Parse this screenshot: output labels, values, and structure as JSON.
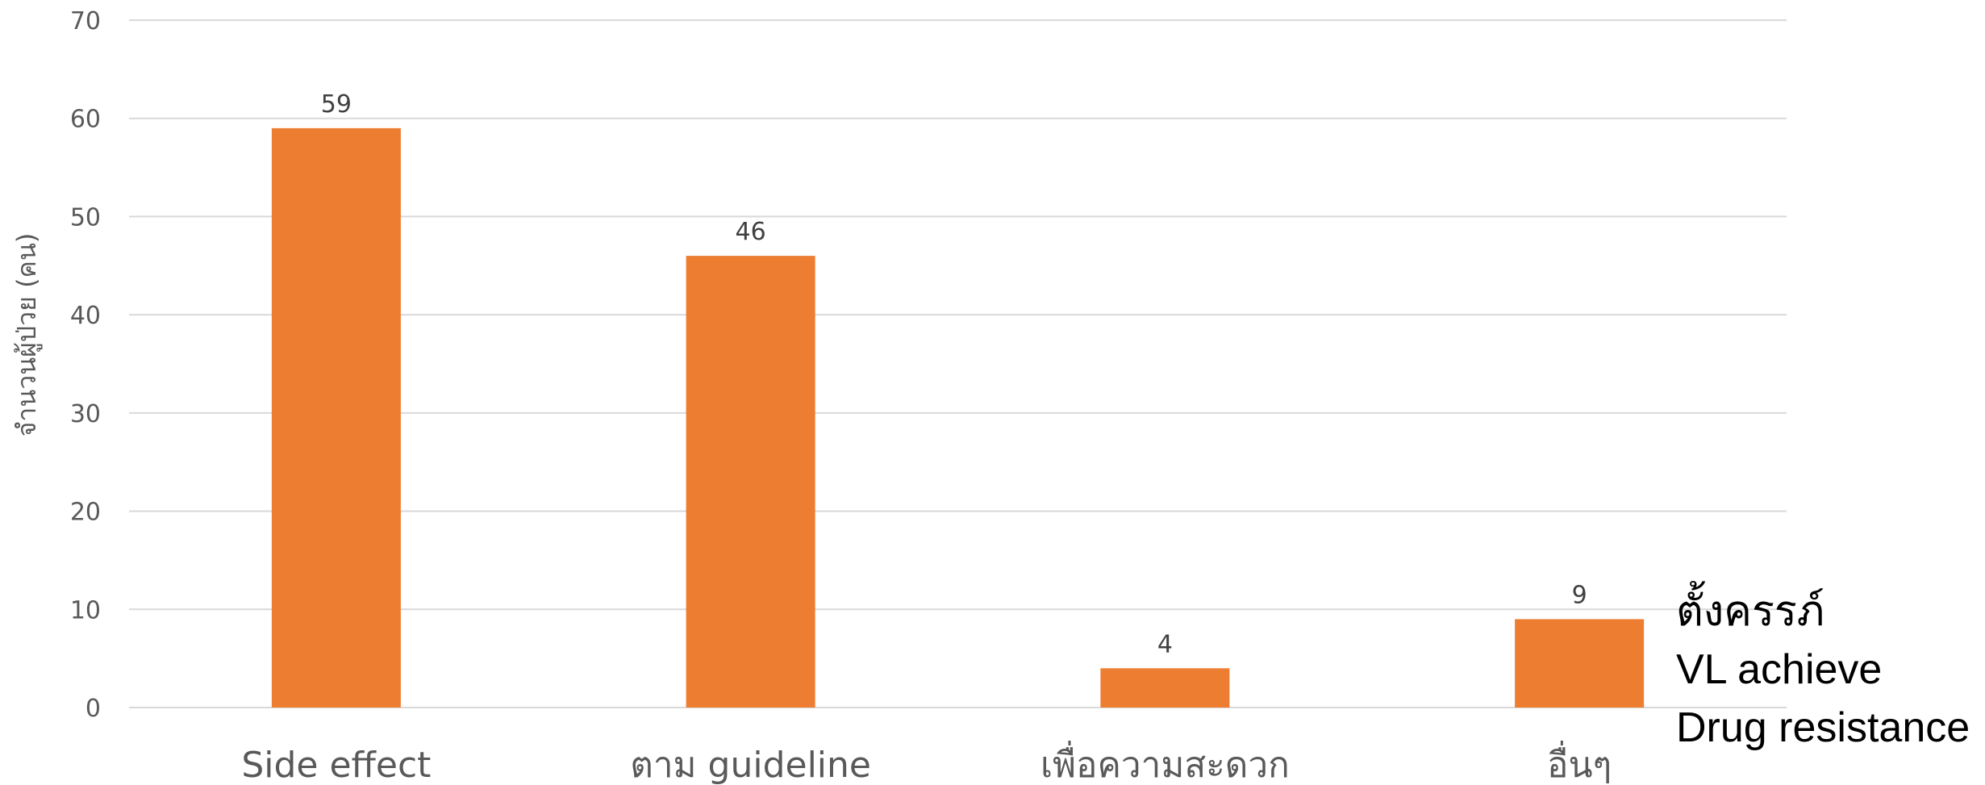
{
  "chart_data": {
    "type": "bar",
    "categories": [
      "Side effect",
      "ตาม guideline",
      "เพื่อความสะดวก",
      "อื่นๆ"
    ],
    "values": [
      59,
      46,
      4,
      9
    ],
    "data_labels": [
      "59",
      "46",
      "4",
      "9"
    ],
    "ylabel": "จำนวนผู้ป่วย (คน)",
    "xlabel": "",
    "ylim": [
      0,
      70
    ],
    "yticks": [
      0,
      10,
      20,
      30,
      40,
      50,
      60,
      70
    ],
    "grid": true,
    "legend": "none",
    "bar_color": "#ED7D31"
  },
  "annotations": [
    "ตั้งครรภ์",
    "VL achieve",
    "Drug resistance"
  ]
}
